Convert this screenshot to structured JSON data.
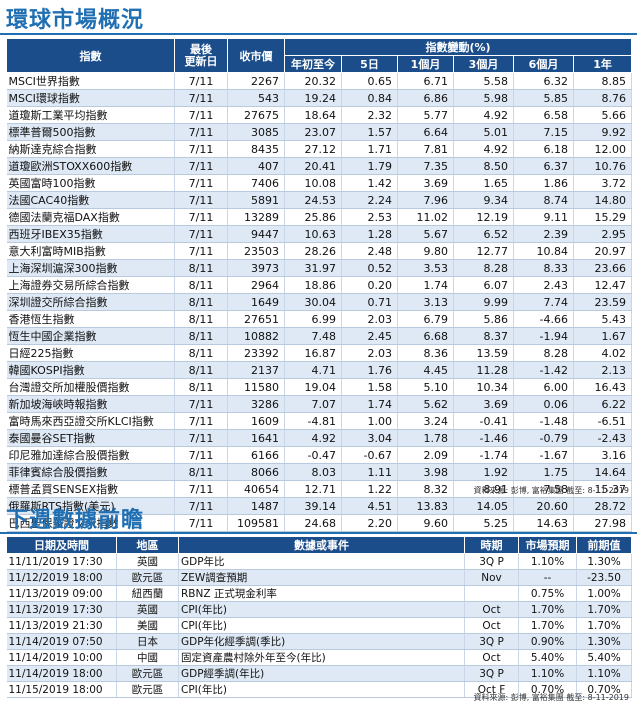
{
  "market": {
    "title": "環球市場概況",
    "headers": {
      "index": "指數",
      "latest": "最後\n更新日",
      "close": "收市價",
      "change_group": "指數變動(%)",
      "ytd": "年初至今",
      "d5": "5日",
      "m1": "1個月",
      "m3": "3個月",
      "m6": "6個月",
      "y1": "1年"
    },
    "rows": [
      [
        "MSCI世界指數",
        "7/11",
        "2267",
        "20.32",
        "0.65",
        "6.71",
        "5.58",
        "6.32",
        "8.85"
      ],
      [
        "MSCI環球指數",
        "7/11",
        "543",
        "19.24",
        "0.84",
        "6.86",
        "5.98",
        "5.85",
        "8.76"
      ],
      [
        "道瓊斯工業平均指數",
        "7/11",
        "27675",
        "18.64",
        "2.32",
        "5.77",
        "4.92",
        "6.58",
        "5.66"
      ],
      [
        "標準普爾500指數",
        "7/11",
        "3085",
        "23.07",
        "1.57",
        "6.64",
        "5.01",
        "7.15",
        "9.92"
      ],
      [
        "納斯達克綜合指數",
        "7/11",
        "8435",
        "27.12",
        "1.71",
        "7.81",
        "4.92",
        "6.18",
        "12.00"
      ],
      [
        "道瓊歐洲STOXX600指數",
        "7/11",
        "407",
        "20.41",
        "1.79",
        "7.35",
        "8.50",
        "6.37",
        "10.76"
      ],
      [
        "英國富時100指數",
        "7/11",
        "7406",
        "10.08",
        "1.42",
        "3.69",
        "1.65",
        "1.86",
        "3.72"
      ],
      [
        "法國CAC40指數",
        "7/11",
        "5891",
        "24.53",
        "2.24",
        "7.96",
        "9.34",
        "8.74",
        "14.80"
      ],
      [
        "德國法蘭克福DAX指數",
        "7/11",
        "13289",
        "25.86",
        "2.53",
        "11.02",
        "12.19",
        "9.11",
        "15.29"
      ],
      [
        "西班牙IBEX35指數",
        "7/11",
        "9447",
        "10.63",
        "1.28",
        "5.67",
        "6.52",
        "2.39",
        "2.95"
      ],
      [
        "意大利富時MIB指數",
        "7/11",
        "23503",
        "28.26",
        "2.48",
        "9.80",
        "12.77",
        "10.84",
        "20.97"
      ],
      [
        "上海深圳滬深300指數",
        "8/11",
        "3973",
        "31.97",
        "0.52",
        "3.53",
        "8.28",
        "8.33",
        "23.66"
      ],
      [
        "上海證券交易所綜合指數",
        "8/11",
        "2964",
        "18.86",
        "0.20",
        "1.74",
        "6.07",
        "2.43",
        "12.47"
      ],
      [
        "深圳證交所綜合指數",
        "8/11",
        "1649",
        "30.04",
        "0.71",
        "3.13",
        "9.99",
        "7.74",
        "23.59"
      ],
      [
        "香港恆生指數",
        "8/11",
        "27651",
        "6.99",
        "2.03",
        "6.79",
        "5.86",
        "-4.66",
        "5.43"
      ],
      [
        "恆生中國企業指數",
        "8/11",
        "10882",
        "7.48",
        "2.45",
        "6.68",
        "8.37",
        "-1.94",
        "1.67"
      ],
      [
        "日經225指數",
        "8/11",
        "23392",
        "16.87",
        "2.03",
        "8.36",
        "13.59",
        "8.28",
        "4.02"
      ],
      [
        "韓國KOSPI指數",
        "8/11",
        "2137",
        "4.71",
        "1.76",
        "4.45",
        "11.28",
        "-1.42",
        "2.13"
      ],
      [
        "台灣證交所加權股價指數",
        "8/11",
        "11580",
        "19.04",
        "1.58",
        "5.10",
        "10.34",
        "6.00",
        "16.43"
      ],
      [
        "新加坡海峽時報指數",
        "7/11",
        "3286",
        "7.07",
        "1.74",
        "5.62",
        "3.69",
        "0.06",
        "6.22"
      ],
      [
        "富時馬來西亞證交所KLCI指數",
        "7/11",
        "1609",
        "-4.81",
        "1.00",
        "3.24",
        "-0.41",
        "-1.48",
        "-6.51"
      ],
      [
        "泰國曼谷SET指數",
        "7/11",
        "1641",
        "4.92",
        "3.04",
        "1.78",
        "-1.46",
        "-0.79",
        "-2.43"
      ],
      [
        "印尼雅加達綜合股價指數",
        "7/11",
        "6166",
        "-0.47",
        "-0.67",
        "2.09",
        "-1.74",
        "-1.67",
        "3.16"
      ],
      [
        "菲律賓綜合股價指數",
        "8/11",
        "8066",
        "8.03",
        "1.11",
        "3.98",
        "1.92",
        "1.75",
        "14.64"
      ],
      [
        "標普孟買SENSEX指數",
        "7/11",
        "40654",
        "12.71",
        "1.22",
        "8.32",
        "8.91",
        "7.58",
        "15.37"
      ],
      [
        "俄羅斯RTS指數(美元)",
        "7/11",
        "1487",
        "39.14",
        "4.51",
        "13.83",
        "14.05",
        "20.60",
        "28.72"
      ],
      [
        "巴西聖保羅證交所指數",
        "7/11",
        "109581",
        "24.68",
        "2.20",
        "9.60",
        "5.25",
        "14.63",
        "27.98"
      ]
    ],
    "source": "資料來源: 彭博, 富裕集團 截至: 8-11-2019"
  },
  "calendar": {
    "title": "下週數據前瞻",
    "headers": {
      "datetime": "日期及時間",
      "region": "地區",
      "event": "數據或事件",
      "period": "時期",
      "forecast": "市場預期",
      "previous": "前期值"
    },
    "rows": [
      [
        "11/11/2019 17:30",
        "英國",
        "GDP年比",
        "3Q P",
        "1.10%",
        "1.30%"
      ],
      [
        "11/12/2019 18:00",
        "歐元區",
        "ZEW調查預期",
        "Nov",
        "--",
        "-23.50"
      ],
      [
        "11/13/2019 09:00",
        "紐西蘭",
        "RBNZ 正式現金利率",
        "",
        "0.75%",
        "1.00%"
      ],
      [
        "11/13/2019 17:30",
        "英國",
        "CPI(年比)",
        "Oct",
        "1.70%",
        "1.70%"
      ],
      [
        "11/13/2019 21:30",
        "美國",
        "CPI(年比)",
        "Oct",
        "1.70%",
        "1.70%"
      ],
      [
        "11/14/2019 07:50",
        "日本",
        "GDP年化經季調(季比)",
        "3Q P",
        "0.90%",
        "1.30%"
      ],
      [
        "11/14/2019 10:00",
        "中國",
        "固定資產農村除外年至今(年比)",
        "Oct",
        "5.40%",
        "5.40%"
      ],
      [
        "11/14/2019 18:00",
        "歐元區",
        "GDP經季調(年比)",
        "3Q P",
        "1.10%",
        "1.10%"
      ],
      [
        "11/15/2019 18:00",
        "歐元區",
        "CPI(年比)",
        "Oct F",
        "0.70%",
        "0.70%"
      ]
    ],
    "source": "資料來源: 彭博, 富裕集團 截至: 8-11-2019"
  },
  "colors": {
    "accent": "#1f6fb2",
    "header_bg": "#1a4d8a",
    "row_alt": "#dfe9f5"
  }
}
